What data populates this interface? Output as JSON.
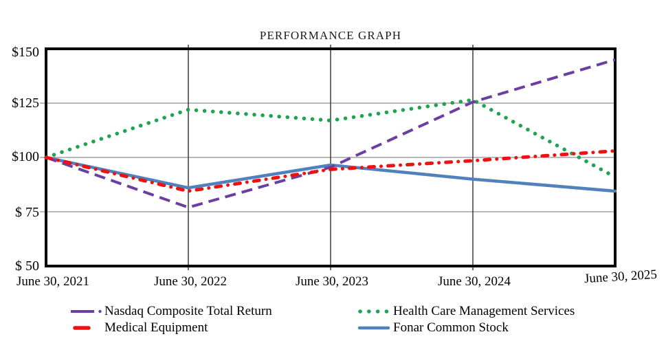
{
  "title": "PERFORMANCE GRAPH",
  "chart_data": {
    "type": "line",
    "title": "PERFORMANCE GRAPH",
    "x_categories": [
      "June 30, 2021",
      "June 30, 2022",
      "June 30, 2023",
      "June 30, 2024",
      "June 30, 2025"
    ],
    "y_tick_labels": [
      "$150",
      "$125",
      "$100",
      "$ 75",
      "$ 50"
    ],
    "y_tick_values": [
      150,
      125,
      100,
      75,
      50
    ],
    "ylim": [
      50,
      150
    ],
    "grid": {
      "horizontal_values": [
        125,
        100,
        75
      ],
      "vertical_category_indexes": [
        1,
        2,
        3
      ]
    },
    "legend_position": "bottom",
    "colors": {
      "nasdaq_purple": "#6B3FA2",
      "medical_red": "#EE1111",
      "healthcare_green": "#1EA44F",
      "fonar_blue": "#5081BD"
    },
    "series": [
      {
        "name": "Nasdaq Composite Total Return",
        "color": "#6B3FA2",
        "line_style": "dash",
        "values": [
          100,
          77,
          95.5,
          125.5,
          145
        ]
      },
      {
        "name": "Medical Equipment",
        "color": "#EE1111",
        "line_style": "dash-dot",
        "values": [
          100,
          84.5,
          94.5,
          98.5,
          103
        ]
      },
      {
        "name": "Health Care Management Services",
        "color": "#1EA44F",
        "line_style": "dot",
        "values": [
          100,
          122,
          117,
          126.5,
          91
        ]
      },
      {
        "name": "Fonar Common Stock",
        "color": "#5081BD",
        "line_style": "solid",
        "values": [
          100,
          86,
          96.5,
          90,
          84.5
        ]
      }
    ]
  }
}
